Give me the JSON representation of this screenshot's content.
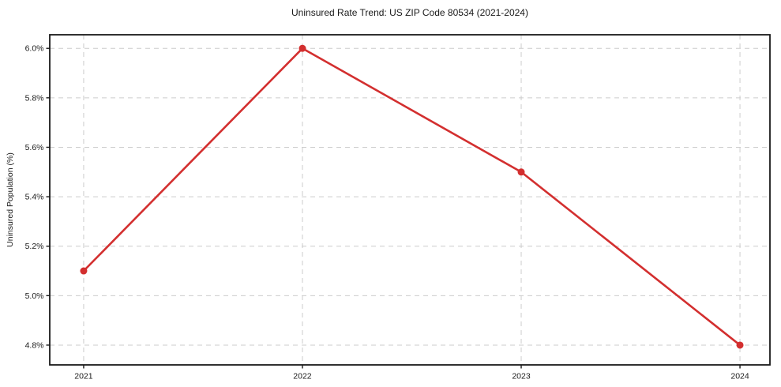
{
  "page": {
    "background": "#ffffff"
  },
  "chart_data": {
    "type": "line",
    "title": "Uninsured Rate Trend: US ZIP Code 80534 (2021-2024)",
    "xlabel": "",
    "ylabel": "Uninsured Population (%)",
    "x": [
      2021,
      2022,
      2023,
      2024
    ],
    "x_tick_labels": [
      "2021",
      "2022",
      "2023",
      "2024"
    ],
    "series": [
      {
        "name": "Uninsured Population (%)",
        "values": [
          5.1,
          6.0,
          5.5,
          4.8
        ],
        "color": "#d32f2f",
        "marker": "circle"
      }
    ],
    "y_tick_values": [
      4.8,
      5.0,
      5.2,
      5.4,
      5.6,
      5.8,
      6.0
    ],
    "y_tick_labels": [
      "4.8%",
      "5.0%",
      "5.2%",
      "5.4%",
      "5.6%",
      "5.8%",
      "6.0%"
    ],
    "xlim": [
      2020.845,
      2024.137
    ],
    "ylim": [
      4.72,
      6.055
    ],
    "grid": true,
    "grid_style": "dashed",
    "legend": "none",
    "axis_color": "#1a1a1a",
    "grid_color": "#cccccc"
  }
}
